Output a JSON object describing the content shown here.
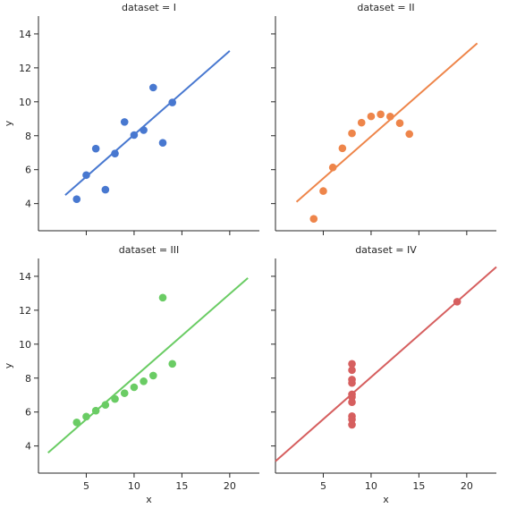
{
  "chart_data": [
    {
      "type": "scatter",
      "title": "dataset = I",
      "ylabel": "y",
      "x": [
        10,
        8,
        13,
        9,
        11,
        14,
        6,
        4,
        12,
        7,
        5
      ],
      "values": [
        8.04,
        6.95,
        7.58,
        8.81,
        8.33,
        9.96,
        7.24,
        4.26,
        10.84,
        4.82,
        5.68
      ],
      "color": "#4878d0",
      "fit_x": [
        2.8,
        20
      ],
      "fit_y": [
        4.5,
        13.0
      ],
      "xlim": [
        0,
        23.1
      ],
      "ylim": [
        2.4,
        15.05
      ],
      "xticks": [
        5,
        10,
        15,
        20
      ],
      "yticks": [
        4,
        6,
        8,
        10,
        12,
        14
      ],
      "x_tick_labels": false,
      "y_tick_labels": true
    },
    {
      "type": "scatter",
      "title": "dataset = II",
      "x": [
        10,
        8,
        13,
        9,
        11,
        14,
        6,
        4,
        12,
        7,
        5
      ],
      "values": [
        9.14,
        8.14,
        8.74,
        8.77,
        9.26,
        8.1,
        6.13,
        3.1,
        9.13,
        7.26,
        4.74
      ],
      "color": "#ee854a",
      "fit_x": [
        2.2,
        21.1
      ],
      "fit_y": [
        4.1,
        13.45
      ],
      "xlim": [
        0,
        23.1
      ],
      "ylim": [
        2.4,
        15.05
      ],
      "xticks": [
        5,
        10,
        15,
        20
      ],
      "yticks": [
        4,
        6,
        8,
        10,
        12,
        14
      ],
      "x_tick_labels": false,
      "y_tick_labels": false
    },
    {
      "type": "scatter",
      "title": "dataset = III",
      "xlabel": "x",
      "ylabel": "y",
      "x": [
        10,
        8,
        13,
        9,
        11,
        14,
        6,
        4,
        12,
        7,
        5
      ],
      "values": [
        7.46,
        6.77,
        12.74,
        7.11,
        7.81,
        8.84,
        6.08,
        5.39,
        8.15,
        6.42,
        5.73
      ],
      "color": "#6acc64",
      "fit_x": [
        1.0,
        21.9
      ],
      "fit_y": [
        3.6,
        13.9
      ],
      "xlim": [
        0,
        23.1
      ],
      "ylim": [
        2.4,
        15.05
      ],
      "xticks": [
        5,
        10,
        15,
        20
      ],
      "yticks": [
        4,
        6,
        8,
        10,
        12,
        14
      ],
      "x_tick_labels": true,
      "y_tick_labels": true
    },
    {
      "type": "scatter",
      "title": "dataset = IV",
      "xlabel": "x",
      "x": [
        8,
        8,
        8,
        8,
        8,
        8,
        8,
        19,
        8,
        8,
        8
      ],
      "values": [
        6.58,
        5.76,
        7.71,
        8.84,
        8.47,
        7.04,
        5.25,
        12.5,
        5.56,
        7.91,
        6.89
      ],
      "color": "#d65f5f",
      "fit_x": [
        0,
        23.1
      ],
      "fit_y": [
        3.1,
        14.55
      ],
      "xlim": [
        0,
        23.1
      ],
      "ylim": [
        2.4,
        15.05
      ],
      "xticks": [
        5,
        10,
        15,
        20
      ],
      "yticks": [
        4,
        6,
        8,
        10,
        12,
        14
      ],
      "x_tick_labels": true,
      "y_tick_labels": false
    }
  ]
}
